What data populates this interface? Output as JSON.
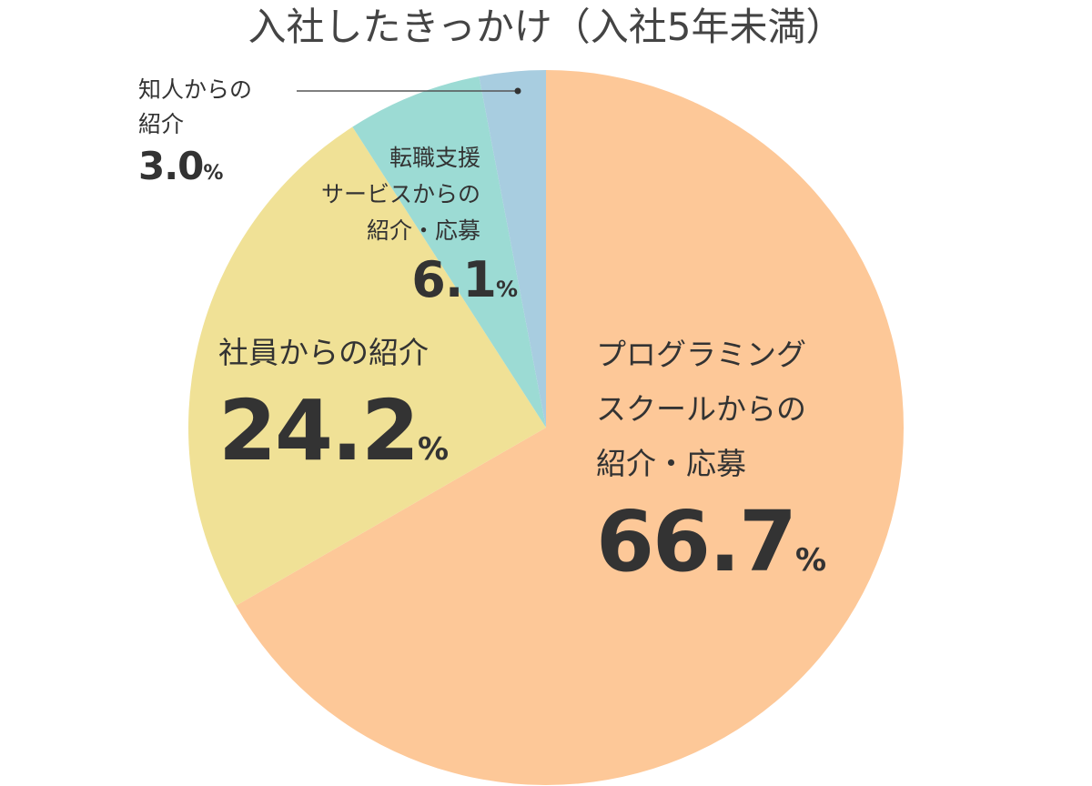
{
  "chart_data": {
    "type": "pie",
    "title": "入社したきっかけ（入社5年未満）",
    "start_angle_deg": 0,
    "direction": "clockwise",
    "slices": [
      {
        "label": "プログラミング\nスクールからの\n紹介・応募",
        "value": 66.7,
        "value_text": "66.7",
        "color": "#FDC898"
      },
      {
        "label": "社員からの紹介",
        "value": 24.2,
        "value_text": "24.2",
        "color": "#F0E196"
      },
      {
        "label": "転職支援\nサービスからの\n紹介・応募",
        "value": 6.1,
        "value_text": "6.1",
        "color": "#9CDBD4"
      },
      {
        "label": "知人からの\n紹介",
        "value": 3.0,
        "value_text": "3.0",
        "color": "#A8CDE0"
      }
    ],
    "unit": "%",
    "legend": "none",
    "leader_line_color": "#555555"
  }
}
